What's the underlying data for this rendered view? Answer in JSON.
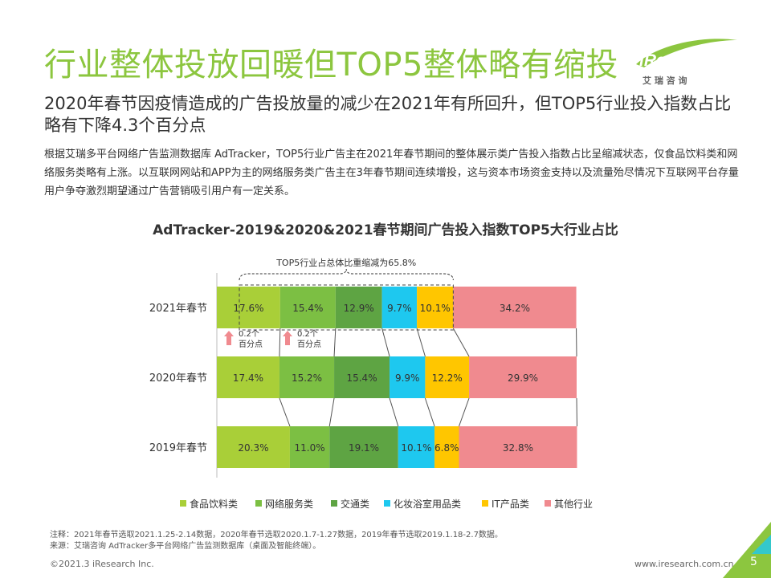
{
  "header": {
    "title": "行业整体投放回暖但TOP5整体略有缩投",
    "subtitle": "2020年春节因疫情造成的广告投放量的减少在2021年有所回升，但TOP5行业投入指数占比略有下降4.3个百分点",
    "description": "根据艾瑞多平台网络广告监测数据库 AdTracker，TOP5行业广告主在2021年春节期间的整体展示类广告投入指数占比呈缩减状态，仅食品饮料类和网络服务类略有上涨。以互联网网站和APP为主的网络服务类广告主在3年春节期间连续增投，这与资本市场资金支持以及流量殆尽情况下互联网平台存量用户争夺激烈期望通过广告营销吸引用户有一定关系。"
  },
  "logo": {
    "brand": "iResearch",
    "cn": "艾 瑞 咨 询",
    "color": "#8cc63f"
  },
  "chart_data": {
    "type": "bar",
    "orientation": "horizontal",
    "stacked": true,
    "title": "AdTracker-2019&2020&2021春节期间广告投入指数TOP5大行业占比",
    "categories": [
      "2021年春节",
      "2020年春节",
      "2019年春节"
    ],
    "series": [
      {
        "name": "食品饮料类",
        "color": "#a9cf38",
        "values": [
          17.6,
          17.4,
          20.3
        ],
        "labels": [
          "17.6%",
          "17.4%",
          "20.3%"
        ]
      },
      {
        "name": "网络服务类",
        "color": "#7cbf43",
        "values": [
          15.4,
          15.2,
          11.0
        ],
        "labels": [
          "15.4%",
          "15.2%",
          "11.0%"
        ]
      },
      {
        "name": "交通类",
        "color": "#5ea443",
        "values": [
          12.9,
          15.4,
          19.1
        ],
        "labels": [
          "12.9%",
          "15.4%",
          "19.1%"
        ]
      },
      {
        "name": "化妆浴室用品类",
        "color": "#1ec8ef",
        "values": [
          9.7,
          9.9,
          10.1
        ],
        "labels": [
          "9.7%",
          "9.9%",
          "10.1%"
        ]
      },
      {
        "name": "IT产品类",
        "color": "#ffc600",
        "values": [
          10.1,
          12.2,
          6.8
        ],
        "labels": [
          "10.1%",
          "12.2%",
          "6.8%"
        ]
      },
      {
        "name": "其他行业",
        "color": "#f08a8f",
        "values": [
          34.2,
          29.9,
          32.8
        ],
        "labels": [
          "34.2%",
          "29.9%",
          "32.8%"
        ]
      }
    ],
    "annotation": "TOP5行业占总体比重缩减为65.8%",
    "changes": [
      {
        "line1": "0.2个",
        "line2": "百分点"
      },
      {
        "line1": "0.2个",
        "line2": "百分点"
      }
    ],
    "legend_position": "bottom",
    "grid": false
  },
  "notes": {
    "line1": "注释：2021年春节选取2021.1.25-2.14数据，2020年春节选取2020.1.7-1.27数据，2019年春节选取2019.1.18-2.7数据。",
    "line2": "来源：艾瑞咨询 AdTracker多平台网络广告监测数据库（桌面及智能终端）。"
  },
  "footer": {
    "copyright": "©2021.3 iResearch Inc.",
    "website": "www.iresearch.com.cn",
    "page": "5"
  }
}
